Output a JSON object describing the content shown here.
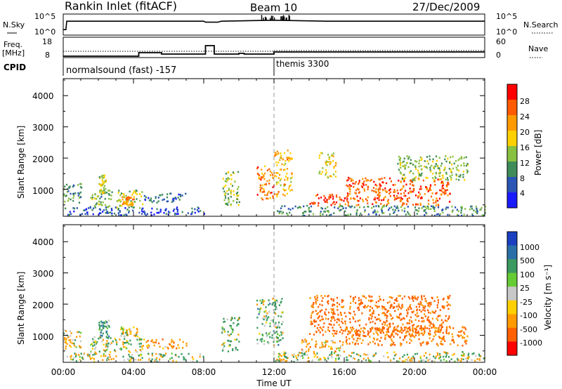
{
  "header": {
    "station": "Rankin Inlet (fitACF)",
    "beam": "Beam 10",
    "date": "27/Dec/2009"
  },
  "noise_panel": {
    "left_label": "N.Sky",
    "left_ticks": [
      "10^5",
      "10^0"
    ],
    "right_label": "N.Search",
    "right_ticks": [
      "10^5",
      "10^0"
    ]
  },
  "freq_panel": {
    "left_label_1": "Freq.",
    "left_label_2": "[MHz]",
    "left_ticks": [
      "18",
      "8"
    ],
    "right_label": "Nave",
    "right_ticks": [
      "60",
      "0"
    ]
  },
  "cpid_panel": {
    "label": "CPID",
    "mode_1": "normalsound (fast) -157",
    "mode_2": "themis 3300"
  },
  "power_panel": {
    "ylabel": "Slant Range [km]",
    "yticks": [
      "1000",
      "2000",
      "3000",
      "4000"
    ],
    "colorbar_label": "Power [dB]",
    "colorbar_ticks": [
      "4",
      "8",
      "12",
      "16",
      "20",
      "24",
      "28"
    ],
    "colors": [
      "#1a1aff",
      "#2a55b5",
      "#3f8c5a",
      "#88c040",
      "#ffd000",
      "#ff9a00",
      "#ff5a00",
      "#ff0000"
    ]
  },
  "velocity_panel": {
    "ylabel": "Slant Range [km]",
    "yticks": [
      "1000",
      "2000",
      "3000",
      "4000"
    ],
    "colorbar_label": "Velocity [m s⁻¹]",
    "colorbar_ticks": [
      "1000",
      "500",
      "100",
      "25",
      "-25",
      "-100",
      "-500",
      "-1000"
    ],
    "colors": [
      "#1a3fc0",
      "#2a6fa8",
      "#3a9a60",
      "#66cc33",
      "#c8c8c8",
      "#ffd000",
      "#ff9a00",
      "#ff6000",
      "#ff0000"
    ]
  },
  "xaxis": {
    "label": "Time UT",
    "ticks": [
      "00:00",
      "04:00",
      "08:00",
      "12:00",
      "16:00",
      "20:00",
      "00:00"
    ]
  },
  "chart_data": [
    {
      "type": "line",
      "name": "noise",
      "xlabel": "Time UT",
      "x_range_hours": [
        0,
        24
      ],
      "series": [
        {
          "name": "N.Sky",
          "x": [
            0,
            0.15,
            0.2,
            8,
            8.1,
            8.8,
            9,
            12,
            15,
            24
          ],
          "y": [
            1,
            1,
            3.5,
            3.5,
            3.2,
            3.2,
            3.5,
            3.8,
            3.5,
            3.5
          ]
        }
      ]
    },
    {
      "type": "line",
      "name": "frequency",
      "ylim": [
        8,
        18
      ],
      "x_range_hours": [
        0,
        24
      ],
      "series": [
        {
          "name": "Freq.",
          "x": [
            0,
            4.3,
            4.3,
            5.6,
            5.6,
            8.1,
            8.1,
            8.6,
            8.6,
            10.0,
            10.0,
            10.3,
            10.3,
            12.0,
            12.0,
            24
          ],
          "y": [
            8,
            8,
            10.5,
            10.5,
            9.5,
            9.5,
            15.5,
            15.5,
            9.5,
            9.5,
            10,
            10,
            9.5,
            9.5,
            11,
            11
          ]
        },
        {
          "name": "Nave",
          "x": [
            0,
            12,
            12,
            24
          ],
          "y": [
            21,
            21,
            24,
            24
          ]
        }
      ]
    },
    {
      "type": "heatmap",
      "name": "power",
      "xlabel": "Time UT",
      "ylabel": "Slant Range [km]",
      "zlabel": "Power [dB]",
      "x_range_hours": [
        0,
        24
      ],
      "ylim": [
        180,
        4500
      ],
      "zlim": [
        0,
        32
      ],
      "regions": [
        {
          "t": [
            0.0,
            1.0
          ],
          "r": [
            600,
            1200
          ],
          "p": 10
        },
        {
          "t": [
            1.5,
            2.8
          ],
          "r": [
            450,
            1000
          ],
          "p": 12
        },
        {
          "t": [
            2.0,
            2.4
          ],
          "r": [
            900,
            1500
          ],
          "p": 16
        },
        {
          "t": [
            3.0,
            4.5
          ],
          "r": [
            400,
            1000
          ],
          "p": 14
        },
        {
          "t": [
            3.3,
            4.0
          ],
          "r": [
            500,
            800
          ],
          "p": 22
        },
        {
          "t": [
            4.5,
            7.0
          ],
          "r": [
            600,
            900
          ],
          "p": 8
        },
        {
          "t": [
            0.0,
            8.0
          ],
          "r": [
            180,
            450
          ],
          "p": 6
        },
        {
          "t": [
            9.0,
            10.0
          ],
          "r": [
            500,
            1600
          ],
          "p": 14
        },
        {
          "t": [
            11.0,
            12.0
          ],
          "r": [
            700,
            1800
          ],
          "p": 24
        },
        {
          "t": [
            12.0,
            13.0
          ],
          "r": [
            800,
            2300
          ],
          "p": 20
        },
        {
          "t": [
            14.0,
            16.0
          ],
          "r": [
            500,
            900
          ],
          "p": 28
        },
        {
          "t": [
            14.5,
            15.5
          ],
          "r": [
            1400,
            2200
          ],
          "p": 18
        },
        {
          "t": [
            16.0,
            22.0
          ],
          "r": [
            500,
            1400
          ],
          "p": 26
        },
        {
          "t": [
            19.0,
            23.0
          ],
          "r": [
            1300,
            2100
          ],
          "p": 14
        },
        {
          "t": [
            12.0,
            24.0
          ],
          "r": [
            180,
            500
          ],
          "p": 10
        }
      ]
    },
    {
      "type": "heatmap",
      "name": "velocity",
      "xlabel": "Time UT",
      "ylabel": "Slant Range [km]",
      "zlabel": "Velocity [m s⁻¹]",
      "x_range_hours": [
        0,
        24
      ],
      "ylim": [
        180,
        4500
      ],
      "zlim": [
        -1000,
        1000
      ],
      "regions": [
        {
          "t": [
            0.0,
            1.0
          ],
          "r": [
            600,
            1200
          ],
          "v": -100
        },
        {
          "t": [
            2.0,
            2.6
          ],
          "r": [
            900,
            1500
          ],
          "v": 200
        },
        {
          "t": [
            3.2,
            4.2
          ],
          "r": [
            1000,
            1300
          ],
          "v": 0
        },
        {
          "t": [
            1.5,
            4.5
          ],
          "r": [
            450,
            1000
          ],
          "v": 50
        },
        {
          "t": [
            4.5,
            7.0
          ],
          "r": [
            600,
            900
          ],
          "v": -200
        },
        {
          "t": [
            0.0,
            8.0
          ],
          "r": [
            180,
            450
          ],
          "v": 30
        },
        {
          "t": [
            9.0,
            10.0
          ],
          "r": [
            500,
            1600
          ],
          "v": 100
        },
        {
          "t": [
            11.0,
            12.5
          ],
          "r": [
            700,
            2200
          ],
          "v": 120
        },
        {
          "t": [
            12.0,
            24.0
          ],
          "r": [
            180,
            500
          ],
          "v": 0
        },
        {
          "t": [
            13.5,
            16.0
          ],
          "r": [
            500,
            900
          ],
          "v": -150
        },
        {
          "t": [
            14.0,
            22.0
          ],
          "r": [
            1000,
            2300
          ],
          "v": -400
        },
        {
          "t": [
            16.0,
            23.0
          ],
          "r": [
            700,
            1300
          ],
          "v": -300
        }
      ]
    }
  ]
}
